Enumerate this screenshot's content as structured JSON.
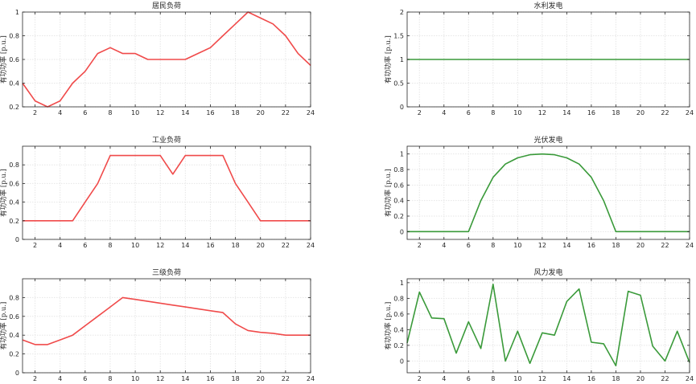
{
  "chart_data": [
    {
      "type": "line",
      "title": "居民负荷",
      "ylabel": "有功功率 [p.u.]",
      "xlim": [
        1,
        24
      ],
      "ylim": [
        0.2,
        1
      ],
      "xticks": [
        2,
        4,
        6,
        8,
        10,
        12,
        14,
        16,
        18,
        20,
        22,
        24
      ],
      "yticks": [
        0.2,
        0.4,
        0.6,
        0.8,
        1
      ],
      "ytick_labels": [
        "0.2",
        "0.4",
        "0.6",
        "0.8",
        "1"
      ],
      "grid": true,
      "color": "#f04a4a",
      "x": [
        1,
        2,
        3,
        4,
        5,
        6,
        7,
        8,
        9,
        10,
        11,
        12,
        13,
        14,
        15,
        16,
        17,
        18,
        19,
        20,
        21,
        22,
        23,
        24
      ],
      "y": [
        0.4,
        0.25,
        0.2,
        0.25,
        0.4,
        0.5,
        0.65,
        0.7,
        0.65,
        0.65,
        0.6,
        0.6,
        0.6,
        0.6,
        0.65,
        0.7,
        0.8,
        0.9,
        1.0,
        0.95,
        0.9,
        0.8,
        0.65,
        0.55
      ]
    },
    {
      "type": "line",
      "title": "水利发电",
      "ylabel": "有功功率 [p.u.]",
      "xlim": [
        1,
        24
      ],
      "ylim": [
        0,
        2
      ],
      "xticks": [
        2,
        4,
        6,
        8,
        10,
        12,
        14,
        16,
        18,
        20,
        22,
        24
      ],
      "yticks": [
        0,
        0.5,
        1,
        1.5,
        2
      ],
      "ytick_labels": [
        "0",
        "0.5",
        "1",
        "1.5",
        "2"
      ],
      "grid": true,
      "color": "#3a9a3a",
      "x": [
        1,
        2,
        3,
        4,
        5,
        6,
        7,
        8,
        9,
        10,
        11,
        12,
        13,
        14,
        15,
        16,
        17,
        18,
        19,
        20,
        21,
        22,
        23,
        24
      ],
      "y": [
        1,
        1,
        1,
        1,
        1,
        1,
        1,
        1,
        1,
        1,
        1,
        1,
        1,
        1,
        1,
        1,
        1,
        1,
        1,
        1,
        1,
        1,
        1,
        1
      ]
    },
    {
      "type": "line",
      "title": "工业负荷",
      "ylabel": "有功功率 [p.u.]",
      "xlim": [
        1,
        24
      ],
      "ylim": [
        0,
        1
      ],
      "xticks": [
        2,
        4,
        6,
        8,
        10,
        12,
        14,
        16,
        18,
        20,
        22,
        24
      ],
      "yticks": [
        0,
        0.2,
        0.4,
        0.6,
        0.8
      ],
      "ytick_labels": [
        "0",
        "0.2",
        "0.4",
        "0.6",
        "0.8"
      ],
      "grid": true,
      "color": "#f04a4a",
      "x": [
        1,
        2,
        3,
        4,
        5,
        6,
        7,
        8,
        9,
        10,
        11,
        12,
        13,
        14,
        15,
        16,
        17,
        18,
        19,
        20,
        21,
        22,
        23,
        24
      ],
      "y": [
        0.2,
        0.2,
        0.2,
        0.2,
        0.2,
        0.4,
        0.6,
        0.9,
        0.9,
        0.9,
        0.9,
        0.9,
        0.7,
        0.9,
        0.9,
        0.9,
        0.9,
        0.6,
        0.4,
        0.2,
        0.2,
        0.2,
        0.2,
        0.2
      ]
    },
    {
      "type": "line",
      "title": "光伏发电",
      "ylabel": "有功功率 [p.u.]",
      "xlim": [
        1,
        24
      ],
      "ylim": [
        -0.1,
        1.1
      ],
      "xticks": [
        2,
        4,
        6,
        8,
        10,
        12,
        14,
        16,
        18,
        20,
        22,
        24
      ],
      "yticks": [
        0,
        0.2,
        0.4,
        0.6,
        0.8,
        1
      ],
      "ytick_labels": [
        "0",
        "0.2",
        "0.4",
        "0.6",
        "0.8",
        "1"
      ],
      "grid": true,
      "color": "#3a9a3a",
      "x": [
        1,
        2,
        3,
        4,
        5,
        6,
        7,
        8,
        9,
        10,
        11,
        12,
        13,
        14,
        15,
        16,
        17,
        18,
        19,
        20,
        21,
        22,
        23,
        24
      ],
      "y": [
        0,
        0,
        0,
        0,
        0,
        0,
        0.4,
        0.7,
        0.87,
        0.95,
        0.99,
        1.0,
        0.99,
        0.95,
        0.87,
        0.7,
        0.4,
        0,
        0,
        0,
        0,
        0,
        0,
        0
      ]
    },
    {
      "type": "line",
      "title": "三级负荷",
      "ylabel": "有功功率 [p.u.]",
      "xlim": [
        1,
        24
      ],
      "ylim": [
        0,
        1
      ],
      "xticks": [
        2,
        4,
        6,
        8,
        10,
        12,
        14,
        16,
        18,
        20,
        22,
        24
      ],
      "yticks": [
        0,
        0.2,
        0.4,
        0.6,
        0.8
      ],
      "ytick_labels": [
        "0",
        "0.2",
        "0.4",
        "0.6",
        "0.8"
      ],
      "grid": true,
      "color": "#f04a4a",
      "x": [
        1,
        2,
        3,
        4,
        5,
        6,
        7,
        8,
        9,
        10,
        11,
        12,
        13,
        14,
        15,
        16,
        17,
        18,
        19,
        20,
        21,
        22,
        23,
        24
      ],
      "y": [
        0.35,
        0.3,
        0.3,
        0.35,
        0.4,
        0.5,
        0.6,
        0.7,
        0.8,
        0.78,
        0.76,
        0.74,
        0.72,
        0.7,
        0.68,
        0.66,
        0.64,
        0.52,
        0.45,
        0.43,
        0.42,
        0.4,
        0.4,
        0.4
      ]
    },
    {
      "type": "line",
      "title": "风力发电",
      "ylabel": "有功功率 [p.u.]",
      "xlim": [
        1,
        24
      ],
      "ylim": [
        -0.15,
        1.05
      ],
      "xticks": [
        2,
        4,
        6,
        8,
        10,
        12,
        14,
        16,
        18,
        20,
        22,
        24
      ],
      "yticks": [
        0,
        0.2,
        0.4,
        0.6,
        0.8,
        1
      ],
      "ytick_labels": [
        "0",
        "0.2",
        "0.4",
        "0.6",
        "0.8",
        "1"
      ],
      "grid": true,
      "color": "#3a9a3a",
      "x": [
        1,
        2,
        3,
        4,
        5,
        6,
        7,
        8,
        9,
        10,
        11,
        12,
        13,
        14,
        15,
        16,
        17,
        18,
        19,
        20,
        21,
        22,
        23,
        24
      ],
      "y": [
        0.23,
        0.88,
        0.55,
        0.54,
        0.1,
        0.5,
        0.16,
        0.98,
        0.0,
        0.38,
        -0.03,
        0.36,
        0.33,
        0.76,
        0.92,
        0.24,
        0.22,
        -0.06,
        0.89,
        0.84,
        0.19,
        0.0,
        0.38,
        -0.02
      ]
    }
  ]
}
